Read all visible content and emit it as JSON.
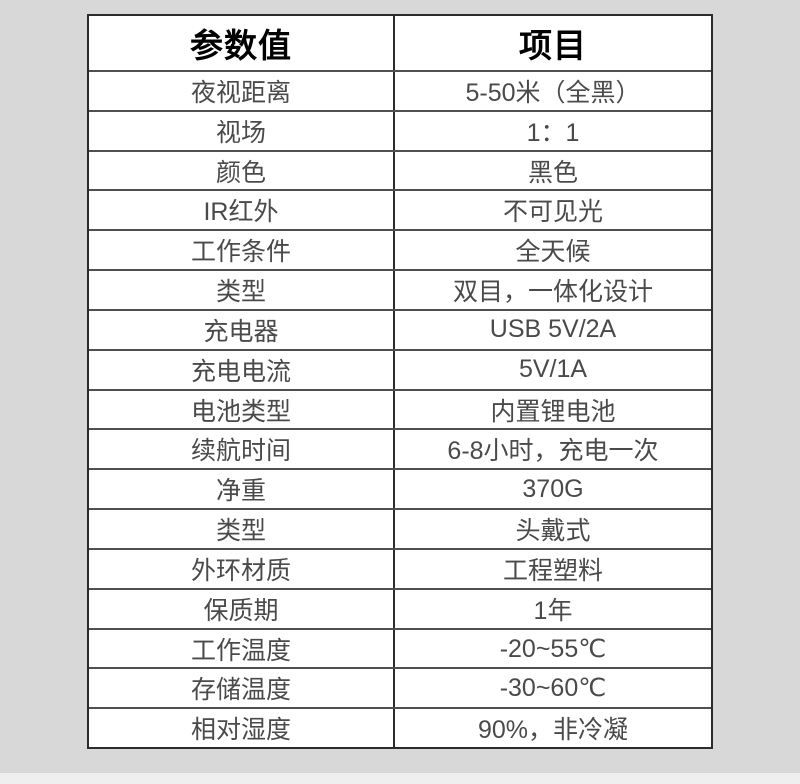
{
  "page": {
    "background_color": "#d8d8d8",
    "bottom_strip_color": "#efefef",
    "table_background": "#ffffff",
    "border_color": "#2b2b2b",
    "grid_line_color": "#4f4f4f",
    "header_text_color": "#000000",
    "body_text_color": "#4a4a4a"
  },
  "table": {
    "header": {
      "param_col": "参数值",
      "item_col": "项目"
    },
    "rows": [
      {
        "label": "夜视距离",
        "value": "5-50米（全黑）"
      },
      {
        "label": "视场",
        "value": "1：1"
      },
      {
        "label": "颜色",
        "value": "黑色"
      },
      {
        "label": "IR红外",
        "value": "不可见光"
      },
      {
        "label": "工作条件",
        "value": "全天候"
      },
      {
        "label": "类型",
        "value": "双目，一体化设计"
      },
      {
        "label": "充电器",
        "value": "USB 5V/2A"
      },
      {
        "label": "充电电流",
        "value": "5V/1A"
      },
      {
        "label": "电池类型",
        "value": "内置锂电池"
      },
      {
        "label": "续航时间",
        "value": "6-8小时，充电一次"
      },
      {
        "label": "净重",
        "value": "370G"
      },
      {
        "label": "类型",
        "value": "头戴式"
      },
      {
        "label": "外环材质",
        "value": "工程塑料"
      },
      {
        "label": "保质期",
        "value": "1年"
      },
      {
        "label": "工作温度",
        "value": "-20~55℃"
      },
      {
        "label": "存储温度",
        "value": "-30~60℃"
      },
      {
        "label": "相对湿度",
        "value": "90%，非冷凝"
      }
    ]
  }
}
